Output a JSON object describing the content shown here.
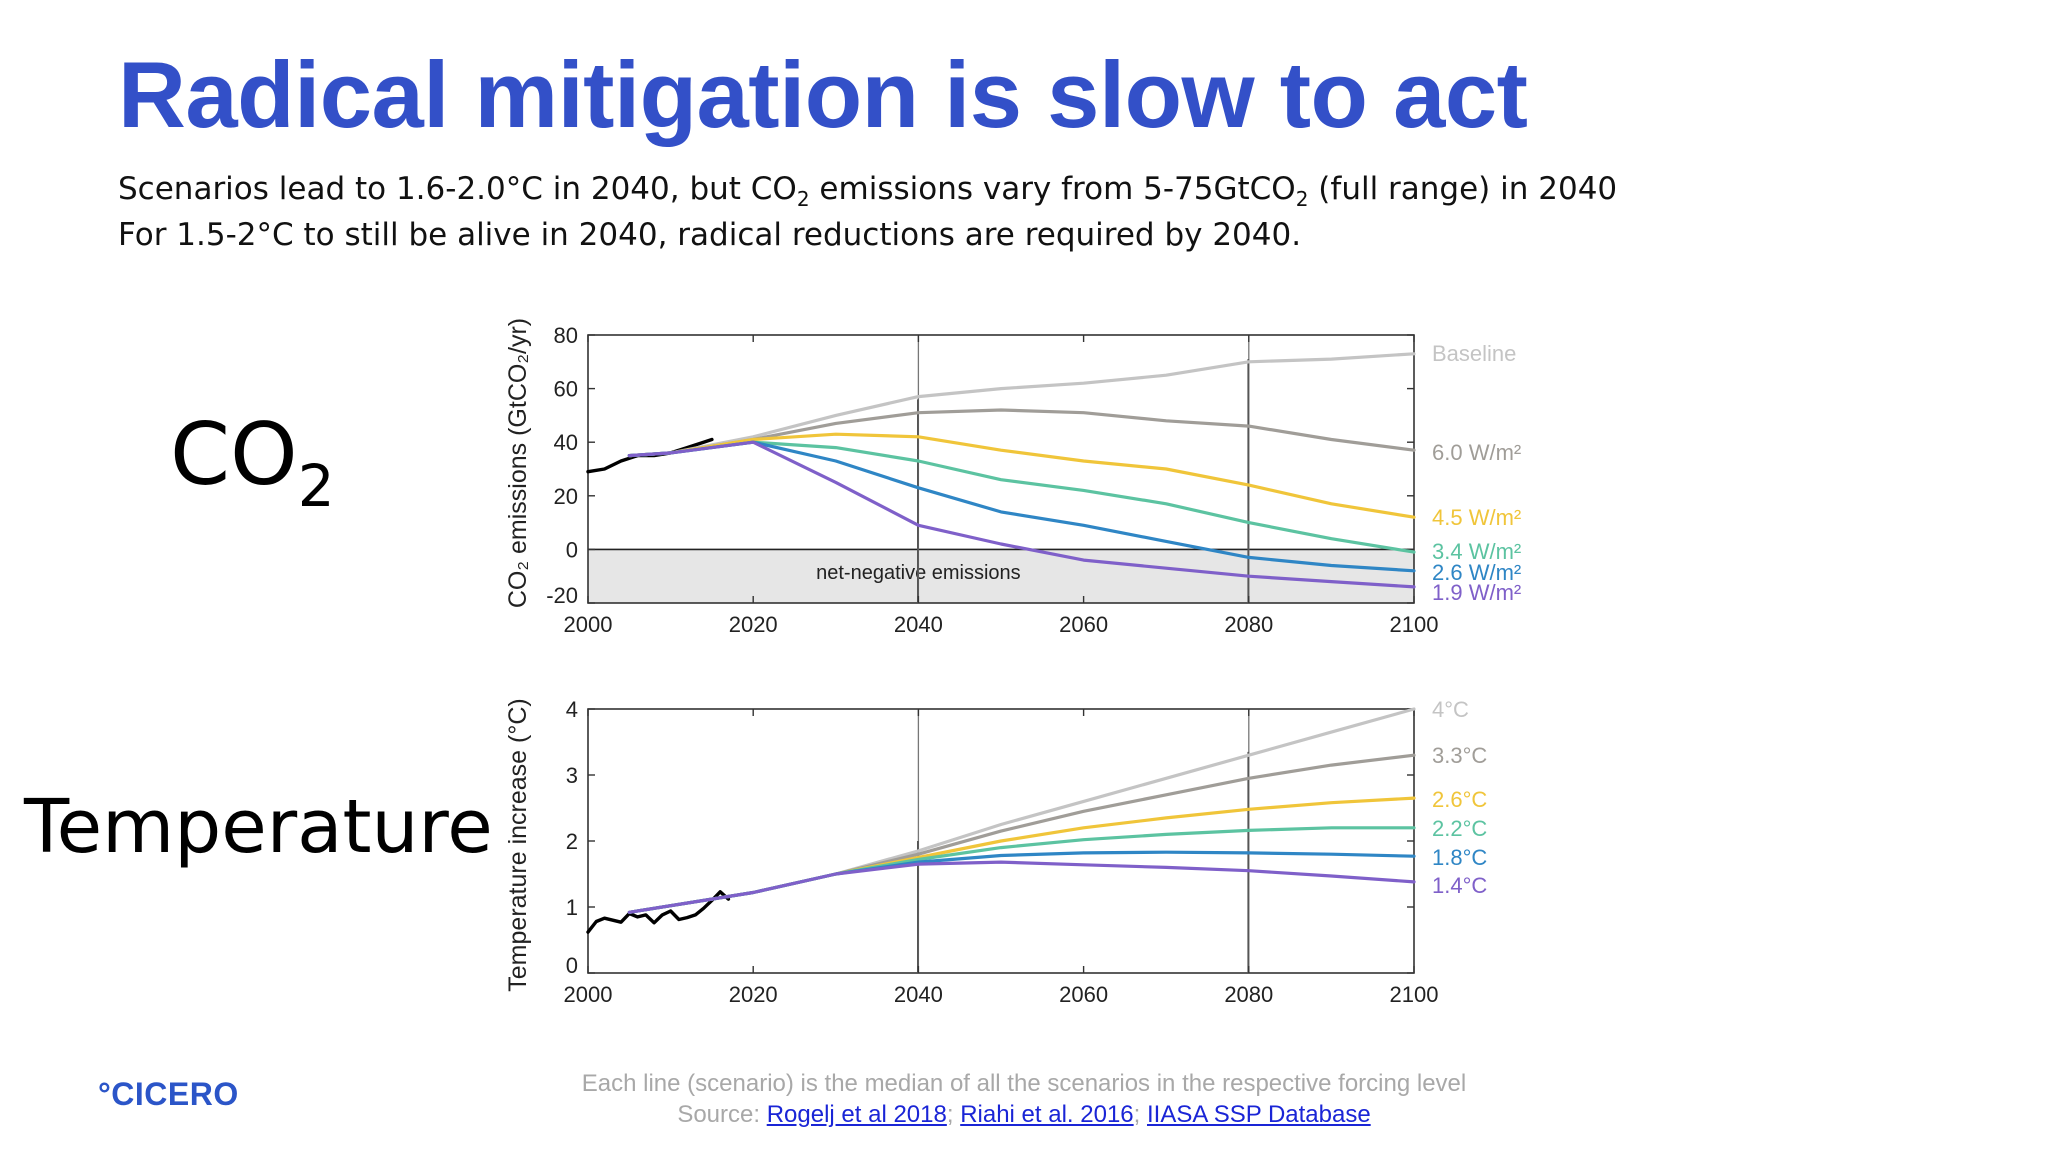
{
  "slide": {
    "title": "Radical mitigation is slow to act",
    "subtitle_line1": {
      "a": "Scenarios lead to 1.6-2.0°C in 2040, but CO",
      "sub1": "2",
      "b": " emissions vary from 5-75GtCO",
      "sub2": "2",
      "c": " (full range) in 2040"
    },
    "subtitle_line2": "For 1.5-2°C to still be alive in 2040, radical reductions are required by 2040.",
    "co2_label": "CO",
    "co2_label_sub": "2",
    "temp_label": "Temperature",
    "logo": "°CICERO",
    "footer_note": "Each line (scenario) is the median of all the scenarios in the respective forcing level",
    "source_prefix": "Source: ",
    "source_links": [
      "Rogelj et al 2018",
      "Riahi et al. 2016",
      "IIASA SSP Database"
    ],
    "source_sep": "; "
  },
  "colors": {
    "title": "#3350c8",
    "baseline": "#c4c4c4",
    "w60": "#a09d98",
    "w45": "#f0c53a",
    "w34": "#5cc3a1",
    "w26": "#2f86c5",
    "w19": "#7f60c9",
    "historical": "#000000",
    "negative_shade": "#e6e6e6"
  },
  "chart_data": [
    {
      "type": "line",
      "ylabel": "CO₂ emissions (GtCO₂/yr)",
      "ylim": [
        -20,
        80
      ],
      "xlim": [
        2000,
        2100
      ],
      "xticks": [
        "2000",
        "2020",
        "2040",
        "2060",
        "2080",
        "2100"
      ],
      "yticks": [
        "-20",
        "0",
        "20",
        "40",
        "60",
        "80"
      ],
      "region_label": "net-negative emissions",
      "series": [
        {
          "name": "Historical",
          "x": [
            2000,
            2002,
            2004,
            2006,
            2008,
            2010,
            2012,
            2014,
            2015
          ],
          "y": [
            29,
            30,
            33,
            35,
            35,
            36,
            38,
            40,
            41
          ]
        },
        {
          "name": "Baseline",
          "x": [
            2005,
            2010,
            2020,
            2030,
            2040,
            2050,
            2060,
            2070,
            2080,
            2090,
            2100
          ],
          "y": [
            35,
            36,
            42,
            50,
            57,
            60,
            62,
            65,
            70,
            71,
            73
          ]
        },
        {
          "name": "6.0 W/m²",
          "x": [
            2005,
            2010,
            2020,
            2030,
            2040,
            2050,
            2060,
            2070,
            2080,
            2090,
            2100
          ],
          "y": [
            35,
            36,
            41,
            47,
            51,
            52,
            51,
            48,
            46,
            41,
            37
          ]
        },
        {
          "name": "4.5 W/m²",
          "x": [
            2005,
            2010,
            2020,
            2030,
            2040,
            2050,
            2060,
            2070,
            2080,
            2090,
            2100
          ],
          "y": [
            35,
            36,
            41,
            43,
            42,
            37,
            33,
            30,
            24,
            17,
            12
          ]
        },
        {
          "name": "3.4 W/m²",
          "x": [
            2005,
            2010,
            2020,
            2030,
            2040,
            2050,
            2060,
            2070,
            2080,
            2090,
            2100
          ],
          "y": [
            35,
            36,
            40,
            38,
            33,
            26,
            22,
            17,
            10,
            4,
            -1
          ]
        },
        {
          "name": "2.6 W/m²",
          "x": [
            2005,
            2010,
            2020,
            2030,
            2040,
            2050,
            2060,
            2070,
            2080,
            2090,
            2100
          ],
          "y": [
            35,
            36,
            40,
            33,
            23,
            14,
            9,
            3,
            -3,
            -6,
            -8
          ]
        },
        {
          "name": "1.9 W/m²",
          "x": [
            2005,
            2010,
            2020,
            2030,
            2040,
            2050,
            2060,
            2070,
            2080,
            2090,
            2100
          ],
          "y": [
            35,
            36,
            40,
            25,
            9,
            2,
            -4,
            -7,
            -10,
            -12,
            -14
          ]
        }
      ]
    },
    {
      "type": "line",
      "ylabel": "Temperature increase (°C)",
      "ylim": [
        0,
        4
      ],
      "xlim": [
        2000,
        2100
      ],
      "xticks": [
        "2000",
        "2020",
        "2040",
        "2060",
        "2080",
        "2100"
      ],
      "yticks": [
        "0",
        "1",
        "2",
        "3",
        "4"
      ],
      "series": [
        {
          "name": "Historical",
          "x": [
            2000,
            2001,
            2002,
            2003,
            2004,
            2005,
            2006,
            2007,
            2008,
            2009,
            2010,
            2011,
            2012,
            2013,
            2014,
            2015,
            2016,
            2017
          ],
          "y": [
            0.62,
            0.78,
            0.83,
            0.8,
            0.77,
            0.9,
            0.85,
            0.88,
            0.76,
            0.88,
            0.94,
            0.81,
            0.84,
            0.88,
            0.98,
            1.1,
            1.23,
            1.12
          ]
        },
        {
          "name": "4°C",
          "x": [
            2005,
            2020,
            2030,
            2040,
            2050,
            2060,
            2070,
            2080,
            2090,
            2100
          ],
          "y": [
            0.92,
            1.22,
            1.5,
            1.85,
            2.25,
            2.6,
            2.95,
            3.3,
            3.65,
            4.0
          ]
        },
        {
          "name": "3.3°C",
          "x": [
            2005,
            2020,
            2030,
            2040,
            2050,
            2060,
            2070,
            2080,
            2090,
            2100
          ],
          "y": [
            0.92,
            1.22,
            1.5,
            1.8,
            2.15,
            2.45,
            2.7,
            2.95,
            3.15,
            3.3
          ]
        },
        {
          "name": "2.6°C",
          "x": [
            2005,
            2020,
            2030,
            2040,
            2050,
            2060,
            2070,
            2080,
            2090,
            2100
          ],
          "y": [
            0.92,
            1.22,
            1.5,
            1.75,
            2.0,
            2.2,
            2.35,
            2.48,
            2.58,
            2.65
          ]
        },
        {
          "name": "2.2°C",
          "x": [
            2005,
            2020,
            2030,
            2040,
            2050,
            2060,
            2070,
            2080,
            2090,
            2100
          ],
          "y": [
            0.92,
            1.22,
            1.5,
            1.72,
            1.9,
            2.02,
            2.1,
            2.16,
            2.2,
            2.2
          ]
        },
        {
          "name": "1.8°C",
          "x": [
            2005,
            2020,
            2030,
            2040,
            2050,
            2060,
            2070,
            2080,
            2090,
            2100
          ],
          "y": [
            0.92,
            1.22,
            1.5,
            1.68,
            1.78,
            1.82,
            1.83,
            1.82,
            1.8,
            1.77
          ]
        },
        {
          "name": "1.4°C",
          "x": [
            2005,
            2020,
            2030,
            2040,
            2050,
            2060,
            2070,
            2080,
            2090,
            2100
          ],
          "y": [
            0.92,
            1.22,
            1.5,
            1.65,
            1.68,
            1.64,
            1.6,
            1.55,
            1.47,
            1.38
          ]
        }
      ]
    }
  ]
}
